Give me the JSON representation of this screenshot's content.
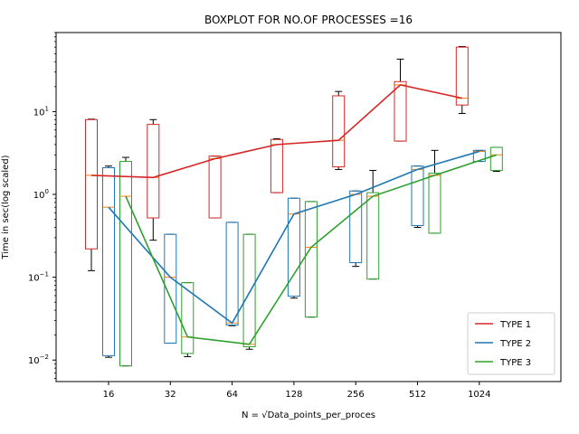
{
  "chart_data": {
    "type": "box",
    "title": "BOXPLOT FOR NO.OF PROCESSES =16",
    "xlabel": "N = √Data_points_per_proces",
    "ylabel": "Time in sec(log scaled)",
    "yscale": "log",
    "ylim": [
      0.0055,
      90
    ],
    "categories": [
      "16",
      "32",
      "64",
      "128",
      "256",
      "512",
      "1024"
    ],
    "y_ticks": [
      {
        "value": 0.01,
        "base": "10",
        "exp": "−2"
      },
      {
        "value": 0.1,
        "base": "10",
        "exp": "−1"
      },
      {
        "value": 1,
        "base": "10",
        "exp": "0"
      },
      {
        "value": 10,
        "base": "10",
        "exp": "1"
      }
    ],
    "grid": false,
    "legend_position": "lower-right",
    "median_color": "#ff7f0e",
    "whisker_color": "#000000",
    "series": [
      {
        "name": "TYPE 1",
        "color": "#d62728",
        "boxes": [
          {
            "low": 0.12,
            "q1": 0.22,
            "median": 1.7,
            "q3": 8.0,
            "high": 8.1
          },
          {
            "low": 0.28,
            "q1": 0.52,
            "median": 1.6,
            "q3": 7.0,
            "high": 8.0
          },
          {
            "low": 0.52,
            "q1": 0.52,
            "median": 2.7,
            "q3": 2.9,
            "high": 2.9
          },
          {
            "low": 1.05,
            "q1": 1.05,
            "median": 4.0,
            "q3": 4.6,
            "high": 4.7
          },
          {
            "low": 2.0,
            "q1": 2.15,
            "median": 4.5,
            "q3": 15.5,
            "high": 17.5
          },
          {
            "low": 4.4,
            "q1": 4.4,
            "median": 21.0,
            "q3": 23.0,
            "high": 43.0
          },
          {
            "low": 9.5,
            "q1": 12.0,
            "median": 14.5,
            "q3": 60.0,
            "high": 61.0
          }
        ]
      },
      {
        "name": "TYPE 2",
        "color": "#1f77b4",
        "boxes": [
          {
            "low": 0.0108,
            "q1": 0.0113,
            "median": 0.7,
            "q3": 2.1,
            "high": 2.2
          },
          {
            "low": 0.016,
            "q1": 0.016,
            "median": 0.1,
            "q3": 0.33,
            "high": 0.33
          },
          {
            "low": 0.026,
            "q1": 0.0265,
            "median": 0.028,
            "q3": 0.46,
            "high": 0.46
          },
          {
            "low": 0.056,
            "q1": 0.059,
            "median": 0.58,
            "q3": 0.9,
            "high": 0.9
          },
          {
            "low": 0.135,
            "q1": 0.15,
            "median": 1.0,
            "q3": 1.1,
            "high": 1.1
          },
          {
            "low": 0.4,
            "q1": 0.42,
            "median": 2.0,
            "q3": 2.2,
            "high": 2.2
          },
          {
            "low": 2.5,
            "q1": 2.5,
            "median": 3.3,
            "q3": 3.4,
            "high": 3.4
          }
        ]
      },
      {
        "name": "TYPE 3",
        "color": "#2ca02c",
        "boxes": [
          {
            "low": 0.0085,
            "q1": 0.0085,
            "median": 0.95,
            "q3": 2.5,
            "high": 2.8
          },
          {
            "low": 0.011,
            "q1": 0.012,
            "median": 0.019,
            "q3": 0.086,
            "high": 0.086
          },
          {
            "low": 0.0135,
            "q1": 0.0145,
            "median": 0.0155,
            "q3": 0.33,
            "high": 0.33
          },
          {
            "low": 0.033,
            "q1": 0.033,
            "median": 0.23,
            "q3": 0.82,
            "high": 0.82
          },
          {
            "low": 0.095,
            "q1": 0.095,
            "median": 0.95,
            "q3": 1.05,
            "high": 1.95
          },
          {
            "low": 0.34,
            "q1": 0.34,
            "median": 1.7,
            "q3": 1.8,
            "high": 3.4
          },
          {
            "low": 1.9,
            "q1": 1.95,
            "median": 3.0,
            "q3": 3.7,
            "high": 3.7
          }
        ]
      }
    ]
  }
}
